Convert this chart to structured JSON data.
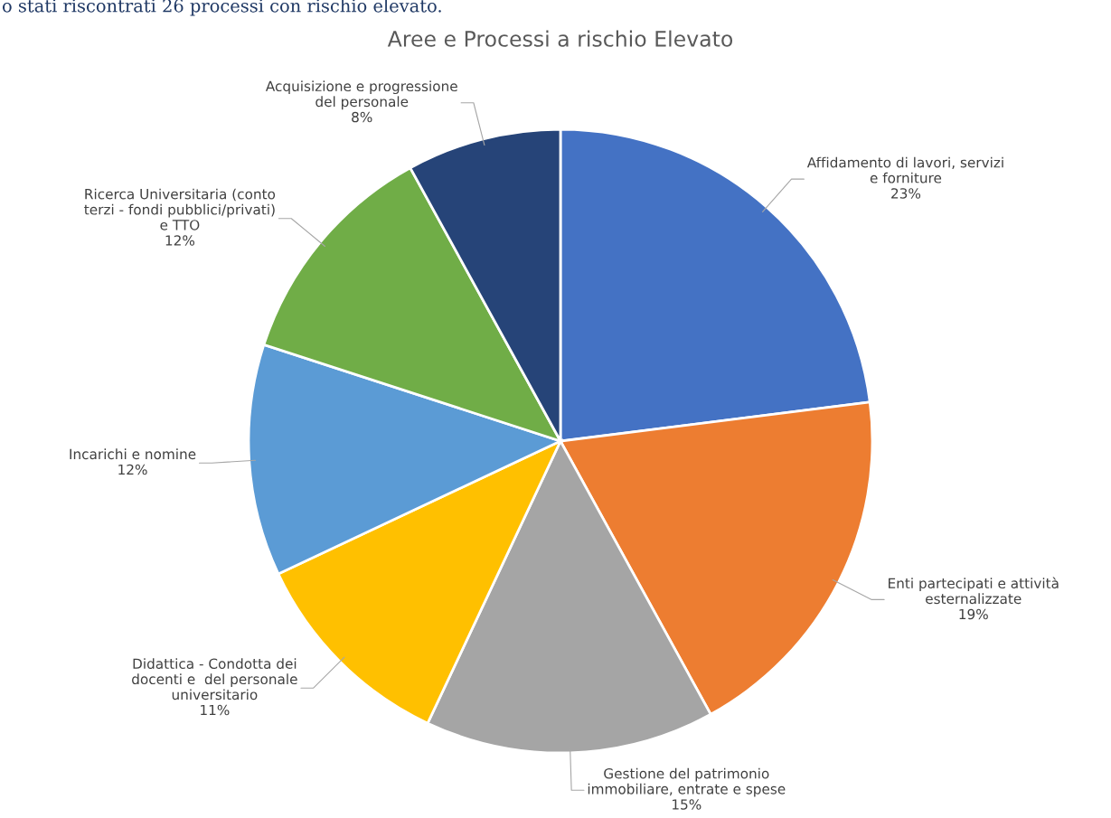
{
  "chart_data": {
    "type": "pie",
    "title": "Aree e Processi a rischio Elevato",
    "categories": [
      "Affidamento di lavori, servizi\ne forniture",
      "Enti partecipati e attività\nesternalizzate",
      "Gestione del patrimonio\nimmobiliare, entrate e spese",
      "Didattica - Condotta dei\ndocenti e  del personale\nuniversitario",
      "Incarichi e nomine",
      "Ricerca Universitaria (conto\nterzi - fondi pubblici/privati)\ne TTO",
      "Acquisizione e progressione\ndel personale"
    ],
    "values": [
      23,
      19,
      15,
      11,
      12,
      12,
      8
    ],
    "value_labels": [
      "23%",
      "19%",
      "15%",
      "11%",
      "12%",
      "12%",
      "8%"
    ],
    "colors": [
      "#4472c4",
      "#ed7d31",
      "#a5a5a5",
      "#ffc000",
      "#5b9bd5",
      "#70ad47",
      "#264478"
    ],
    "annotations": [
      "o stati riscontrati 26 processi con rischio elevato."
    ]
  }
}
